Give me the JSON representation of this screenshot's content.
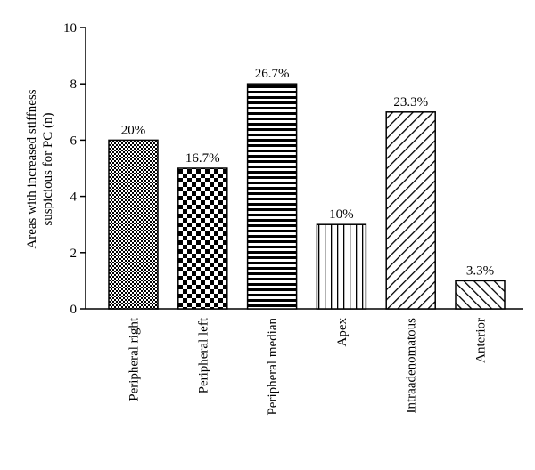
{
  "chart_data": {
    "type": "bar",
    "categories": [
      "Peripheral right",
      "Peripheral left",
      "Peripheral median",
      "Apex",
      "Intraadenomatous",
      "Anterior"
    ],
    "values": [
      6,
      5,
      8,
      3,
      7,
      1
    ],
    "data_labels": [
      "20%",
      "16.7%",
      "26.7%",
      "10%",
      "23.3%",
      "3.3%"
    ],
    "patterns": [
      "fine-checker",
      "checker",
      "horizontal-lines",
      "vertical-lines",
      "diagonal-lines",
      "diagonal-lines-back"
    ],
    "title": "",
    "xlabel": "",
    "ylabel_lines": [
      "Areas with increased stiffness",
      "suspicious for PC (n)"
    ],
    "ylim": [
      0,
      10
    ],
    "yticks": [
      "0",
      "2",
      "4",
      "6",
      "8",
      "10"
    ],
    "grid": false,
    "legend": "none"
  }
}
